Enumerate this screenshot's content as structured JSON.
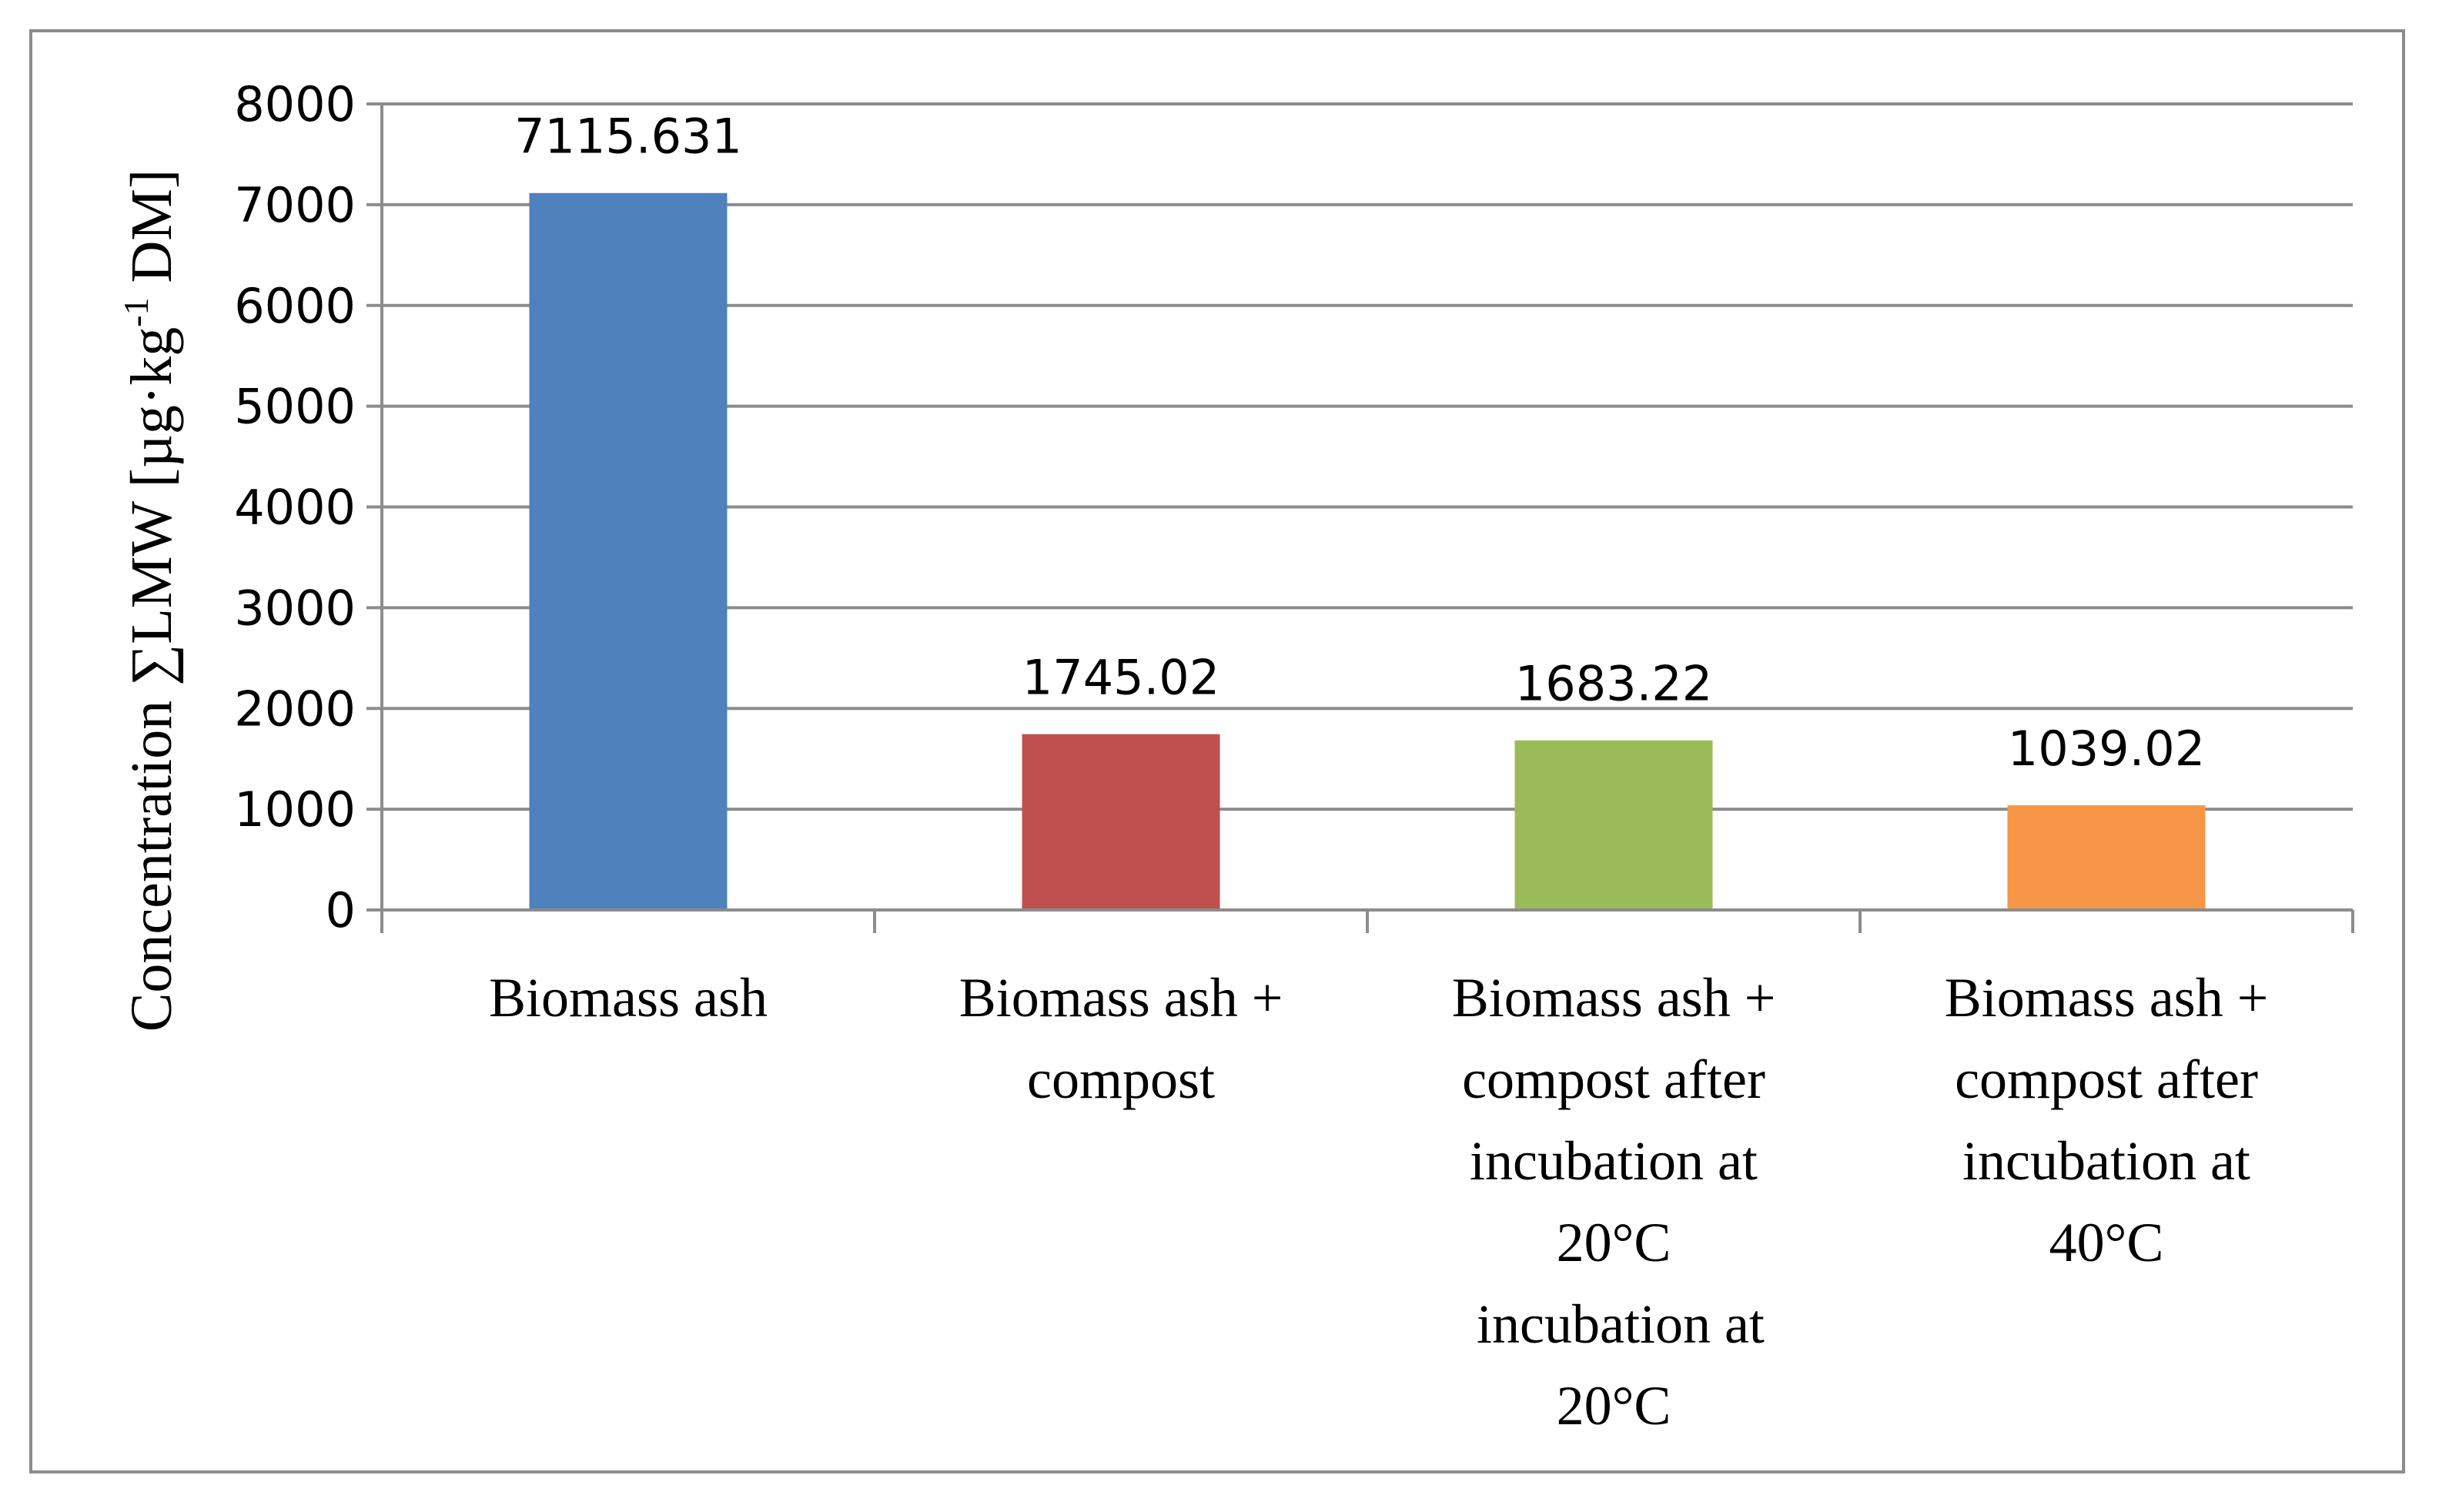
{
  "chart_data": {
    "type": "bar",
    "title": "",
    "xlabel": "",
    "ylabel": {
      "prefix": "Concentration ∑LMW [µg·kg",
      "superscript": "-1",
      "suffix": " DM]"
    },
    "ylim": [
      0,
      8000
    ],
    "yticks": [
      "0",
      "1000",
      "2000",
      "3000",
      "4000",
      "5000",
      "6000",
      "7000",
      "8000"
    ],
    "grid": true,
    "legend": "none",
    "categories": [
      [
        "Biomass ash"
      ],
      [
        "Biomass ash +",
        "compost"
      ],
      [
        "Biomass ash +",
        "compost after",
        "incubation at",
        "20°C",
        " incubation at",
        "20°C"
      ],
      [
        "Biomass ash +",
        "compost after",
        "incubation at",
        "40°C"
      ]
    ],
    "values": [
      7115.631,
      1745.02,
      1683.22,
      1039.02
    ],
    "value_labels": [
      "7115.631",
      "1745.02",
      "1683.22",
      "1039.02"
    ],
    "colors": [
      "#4f81bd",
      "#c0504d",
      "#9bbb59",
      "#f79646"
    ]
  }
}
